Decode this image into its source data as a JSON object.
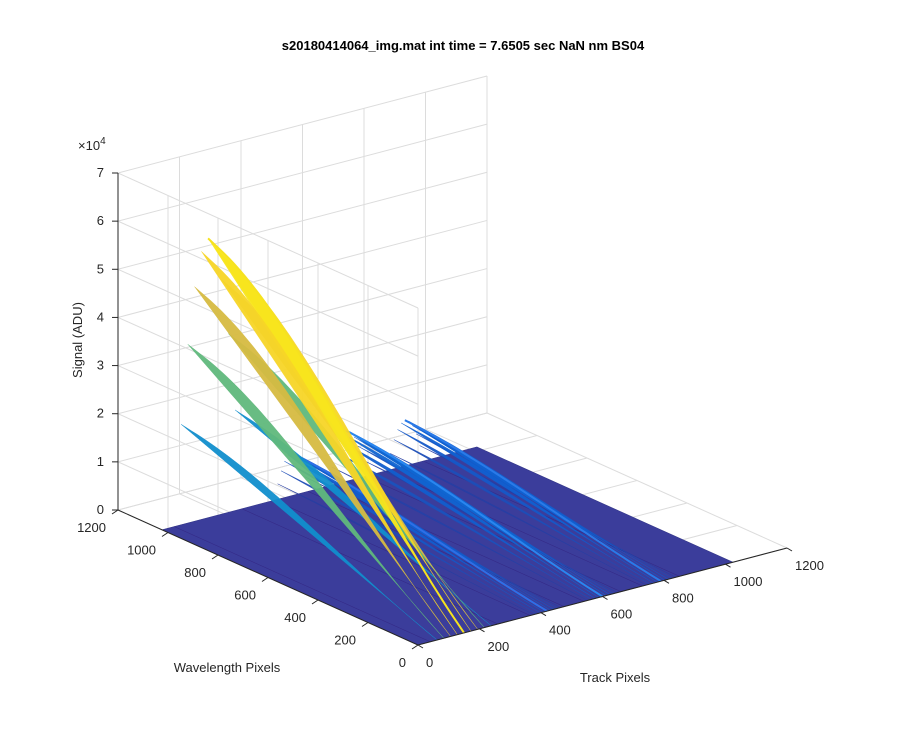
{
  "chart_data": {
    "type": "surface",
    "title": "s20180414064_img.mat int time = 7.6505 sec  NaN nm BS04",
    "xlabel": "Track Pixels",
    "ylabel": "Wavelength Pixels",
    "zlabel": "Signal (ADU)",
    "z_exponent": "×10",
    "z_exponent_power": "4",
    "xlim": [
      0,
      1200
    ],
    "ylim": [
      0,
      1200
    ],
    "zlim": [
      0,
      70000
    ],
    "x_ticks": [
      "0",
      "200",
      "400",
      "600",
      "800",
      "1000",
      "1200"
    ],
    "y_ticks": [
      "0",
      "200",
      "400",
      "600",
      "800",
      "1000",
      "1200"
    ],
    "z_ticks": [
      "0",
      "1",
      "2",
      "3",
      "4",
      "5",
      "6",
      "7"
    ],
    "grid": true,
    "colormap": "parula",
    "surface_extent": {
      "track": [
        0,
        1024
      ],
      "wavelength": [
        0,
        1024
      ]
    },
    "peaks": [
      {
        "track_center": 150,
        "track_width": 110,
        "peak_signal": 58000,
        "color": "#f6e21f"
      },
      {
        "track_center": 420,
        "track_width": 55,
        "peak_signal": 9000,
        "color": "#2f6fe6"
      },
      {
        "track_center": 600,
        "track_width": 60,
        "peak_signal": 10500,
        "color": "#2a86ef"
      },
      {
        "track_center": 790,
        "track_width": 60,
        "peak_signal": 9500,
        "color": "#2a7ae8"
      }
    ],
    "base_color": "#3b3d9b"
  }
}
